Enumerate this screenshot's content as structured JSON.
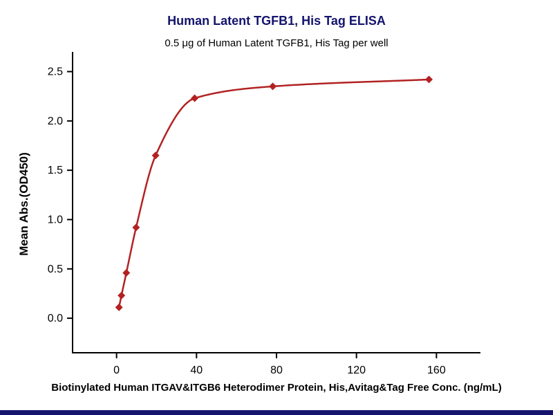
{
  "page": {
    "background": "#ffffff",
    "footer_bar_color": "#14146e"
  },
  "chart_data": {
    "type": "scatter",
    "title": "Human Latent TGFB1, His Tag ELISA",
    "subtitle": "0.5 μg of Human Latent TGFB1, His Tag per well",
    "xlabel": "Biotinylated Human ITGAV&ITGB6 Heterodimer Protein, His,Avitag&Tag Free Conc. (ng/mL)",
    "ylabel": "Mean Abs.(OD450)",
    "x": [
      1.22,
      2.44,
      4.88,
      9.77,
      19.53,
      39.06,
      78.13,
      156.25
    ],
    "y": [
      0.11,
      0.23,
      0.46,
      0.92,
      1.65,
      2.23,
      2.35,
      2.42
    ],
    "x_ticks": [
      0,
      40,
      80,
      120,
      160
    ],
    "y_ticks": [
      0.0,
      0.5,
      1.0,
      1.5,
      2.0,
      2.5
    ],
    "xlim": [
      -22,
      182
    ],
    "ylim": [
      -0.35,
      2.7
    ],
    "series_color": "#b22222",
    "marker": "diamond",
    "title_color": "#14146e",
    "axis_color": "#000000",
    "tick_label_color": "#000000",
    "grid": false,
    "legend": "none",
    "fit_curve": true
  }
}
